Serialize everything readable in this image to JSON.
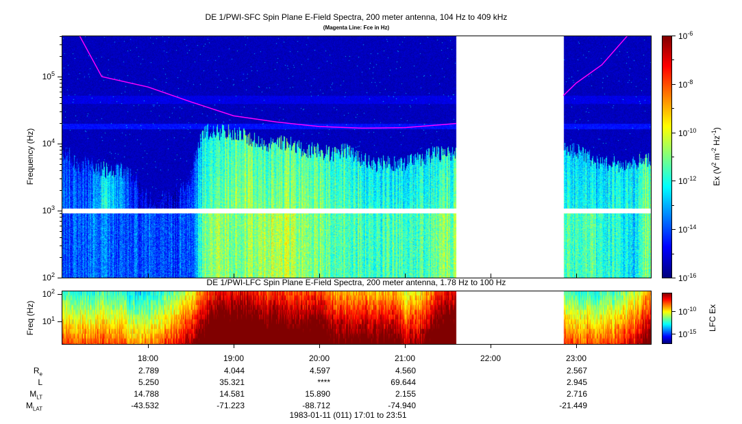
{
  "chart_data": [
    {
      "type": "heatmap",
      "title": "DE 1/PWI-SFC  Spin Plane E-Field Spectra, 200 meter antenna, 104 Hz to 409 kHz",
      "subtitle": "(Magenta Line: Fce in Hz)",
      "ylabel": "Frequency (Hz)",
      "ylim_hz": [
        104,
        409000
      ],
      "yscale": "log",
      "ytick_exponents": [
        2,
        3,
        4,
        5
      ],
      "colorbar": {
        "label": "Ex (V² m⁻² Hz⁻¹)",
        "label_parts": [
          "Ex (V",
          "2",
          " m",
          "-2",
          " Hz",
          "-1",
          ")"
        ],
        "range_log10": [
          -16,
          -6
        ],
        "tick_exponents": [
          -6,
          -8,
          -10,
          -12,
          -14,
          -16
        ],
        "colormap": "jet"
      },
      "data_gap_hours": [
        21.6,
        22.85
      ],
      "missing_freq_band_hz": [
        930,
        1080
      ],
      "fce_line_color": "#ff00ff",
      "fce_line": {
        "segments": [
          [
            [
              17.2,
              409000
            ],
            [
              17.46,
              100000
            ],
            [
              18.0,
              70000
            ],
            [
              18.5,
              42000
            ],
            [
              19.0,
              26000
            ],
            [
              19.5,
              21000
            ],
            [
              20.0,
              18000
            ],
            [
              20.5,
              17000
            ],
            [
              21.0,
              17300
            ],
            [
              21.5,
              19500
            ],
            [
              21.6,
              20000
            ]
          ],
          [
            [
              22.85,
              52000
            ],
            [
              23.0,
              80000
            ],
            [
              23.3,
              150000
            ],
            [
              23.6,
              409000
            ]
          ]
        ]
      },
      "times_hours": [
        17.0,
        17.167,
        17.333,
        17.5,
        17.667,
        17.833,
        18.0,
        18.167,
        18.333,
        18.5,
        18.667,
        18.833,
        19.0,
        19.167,
        19.333,
        19.5,
        19.667,
        19.833,
        20.0,
        20.167,
        20.333,
        20.5,
        20.667,
        20.833,
        21.0,
        21.167,
        21.333,
        21.5,
        23.0,
        23.167,
        23.333,
        23.5,
        23.667,
        23.833
      ],
      "emission_upper_cutoff_hz": [
        8000,
        5000,
        5000,
        4000,
        4000,
        3000,
        1500,
        1500,
        2000,
        3000,
        15000,
        15000,
        15000,
        12000,
        10000,
        10000,
        10000,
        8000,
        8000,
        7000,
        8000,
        6000,
        5000,
        5000,
        5000,
        6000,
        7000,
        7000,
        8000,
        6000,
        5000,
        5000,
        5000,
        6000
      ],
      "log10_level_1k_to_cutoff": [
        -13.5,
        -14,
        -13.5,
        -12,
        -13,
        -14.5,
        -15,
        -15,
        -15,
        -14,
        -11.5,
        -11,
        -10.8,
        -10.8,
        -11,
        -11,
        -10.8,
        -11,
        -11,
        -11.5,
        -11.5,
        -11.8,
        -12,
        -12,
        -12,
        -12,
        -11.5,
        -11.5,
        -12,
        -12.3,
        -12.3,
        -12,
        -12,
        -11
      ],
      "log10_level_100_to_1k": [
        -14,
        -14,
        -13.5,
        -13.5,
        -14,
        -14,
        -14,
        -14,
        -14,
        -14,
        -11,
        -10.5,
        -11,
        -11,
        -10.5,
        -10.5,
        -10.5,
        -11,
        -11,
        -11.5,
        -11.5,
        -11.5,
        -11.8,
        -11.5,
        -11.5,
        -11.8,
        -11,
        -11,
        -11.5,
        -11.5,
        -12,
        -12,
        -12.5,
        -11
      ]
    },
    {
      "type": "heatmap",
      "title": "DE 1/PWI-LFC  Spin Plane E-Field Spectra, 200 meter antenna, 1.78 Hz to 100 Hz",
      "ylabel": "Freq (Hz)",
      "ylim_hz": [
        1.78,
        100
      ],
      "yscale": "log",
      "ytick_exponents": [
        2,
        1
      ],
      "colorbar": {
        "label": "LFC Ex",
        "range_log10": [
          -17,
          -6
        ],
        "tick_exponents": [
          -10,
          -15
        ],
        "colormap": "jet"
      },
      "data_gap_hours": [
        21.6,
        22.85
      ],
      "times_hours": [
        17.0,
        17.167,
        17.333,
        17.5,
        17.667,
        17.833,
        18.0,
        18.167,
        18.333,
        18.5,
        18.667,
        18.833,
        19.0,
        19.167,
        19.333,
        19.5,
        19.667,
        19.833,
        20.0,
        20.167,
        20.333,
        20.5,
        20.667,
        20.833,
        21.0,
        21.167,
        21.333,
        21.5,
        23.0,
        23.167,
        23.333,
        23.5,
        23.667,
        23.833
      ],
      "log10_level": [
        -12,
        -12,
        -12,
        -12,
        -12,
        -13,
        -13,
        -12,
        -11,
        -10,
        -8,
        -7,
        -7,
        -7,
        -7.5,
        -7.5,
        -8,
        -8,
        -7.5,
        -9,
        -9,
        -9,
        -9,
        -9,
        -10,
        -10,
        -8,
        -7,
        -12,
        -12,
        -12,
        -11.5,
        -11,
        -9
      ]
    }
  ],
  "xaxis": {
    "tick_labels": [
      "18:00",
      "19:00",
      "20:00",
      "21:00",
      "22:00",
      "23:00"
    ],
    "tick_hours": [
      18,
      19,
      20,
      21,
      22,
      23
    ],
    "range_hours": [
      17.0167,
      23.85
    ]
  },
  "ephemeris": {
    "rows": [
      {
        "label": "R",
        "sub": "e",
        "values": [
          "2.789",
          "4.044",
          "4.597",
          "4.560",
          "",
          "2.567"
        ]
      },
      {
        "label": "L",
        "sub": "",
        "values": [
          "5.250",
          "35.321",
          "****",
          "69.644",
          "",
          "2.945"
        ]
      },
      {
        "label": "M",
        "sub": "LT",
        "values": [
          "14.788",
          "14.581",
          "15.890",
          "2.155",
          "",
          "2.716"
        ]
      },
      {
        "label": "M",
        "sub": "LAT",
        "values": [
          "-43.532",
          "-71.223",
          "-88.712",
          "-74.940",
          "",
          "-21.449"
        ]
      }
    ],
    "date_caption": "1983-01-11 (011) 17:01 to 23:51"
  }
}
